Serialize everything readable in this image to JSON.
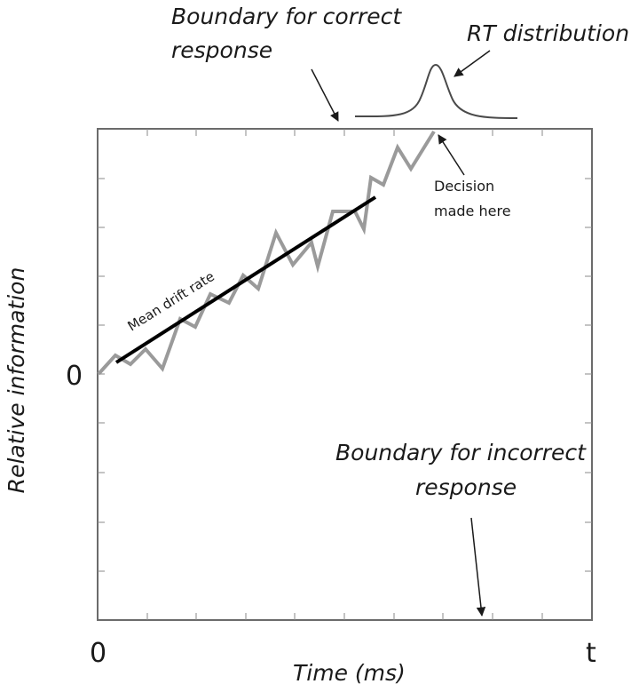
{
  "labels": {
    "boundary_correct_line1": "Boundary for correct",
    "boundary_correct_line2": "response",
    "rt_distribution": "RT distribution",
    "decision_line1": "Decision",
    "decision_line2": "made here",
    "mean_drift_rate": "Mean drift rate",
    "boundary_incorrect_line1": "Boundary for incorrect",
    "boundary_incorrect_line2": "response",
    "y_zero": "0",
    "x_zero": "0",
    "x_end": "t",
    "x_axis_label": "Time (ms)",
    "y_axis_label": "Relative information"
  },
  "colors": {
    "frame": "#6b6b6b",
    "walk": "#9a9a9a",
    "drift": "#000000",
    "text": "#1a1a1a"
  }
}
